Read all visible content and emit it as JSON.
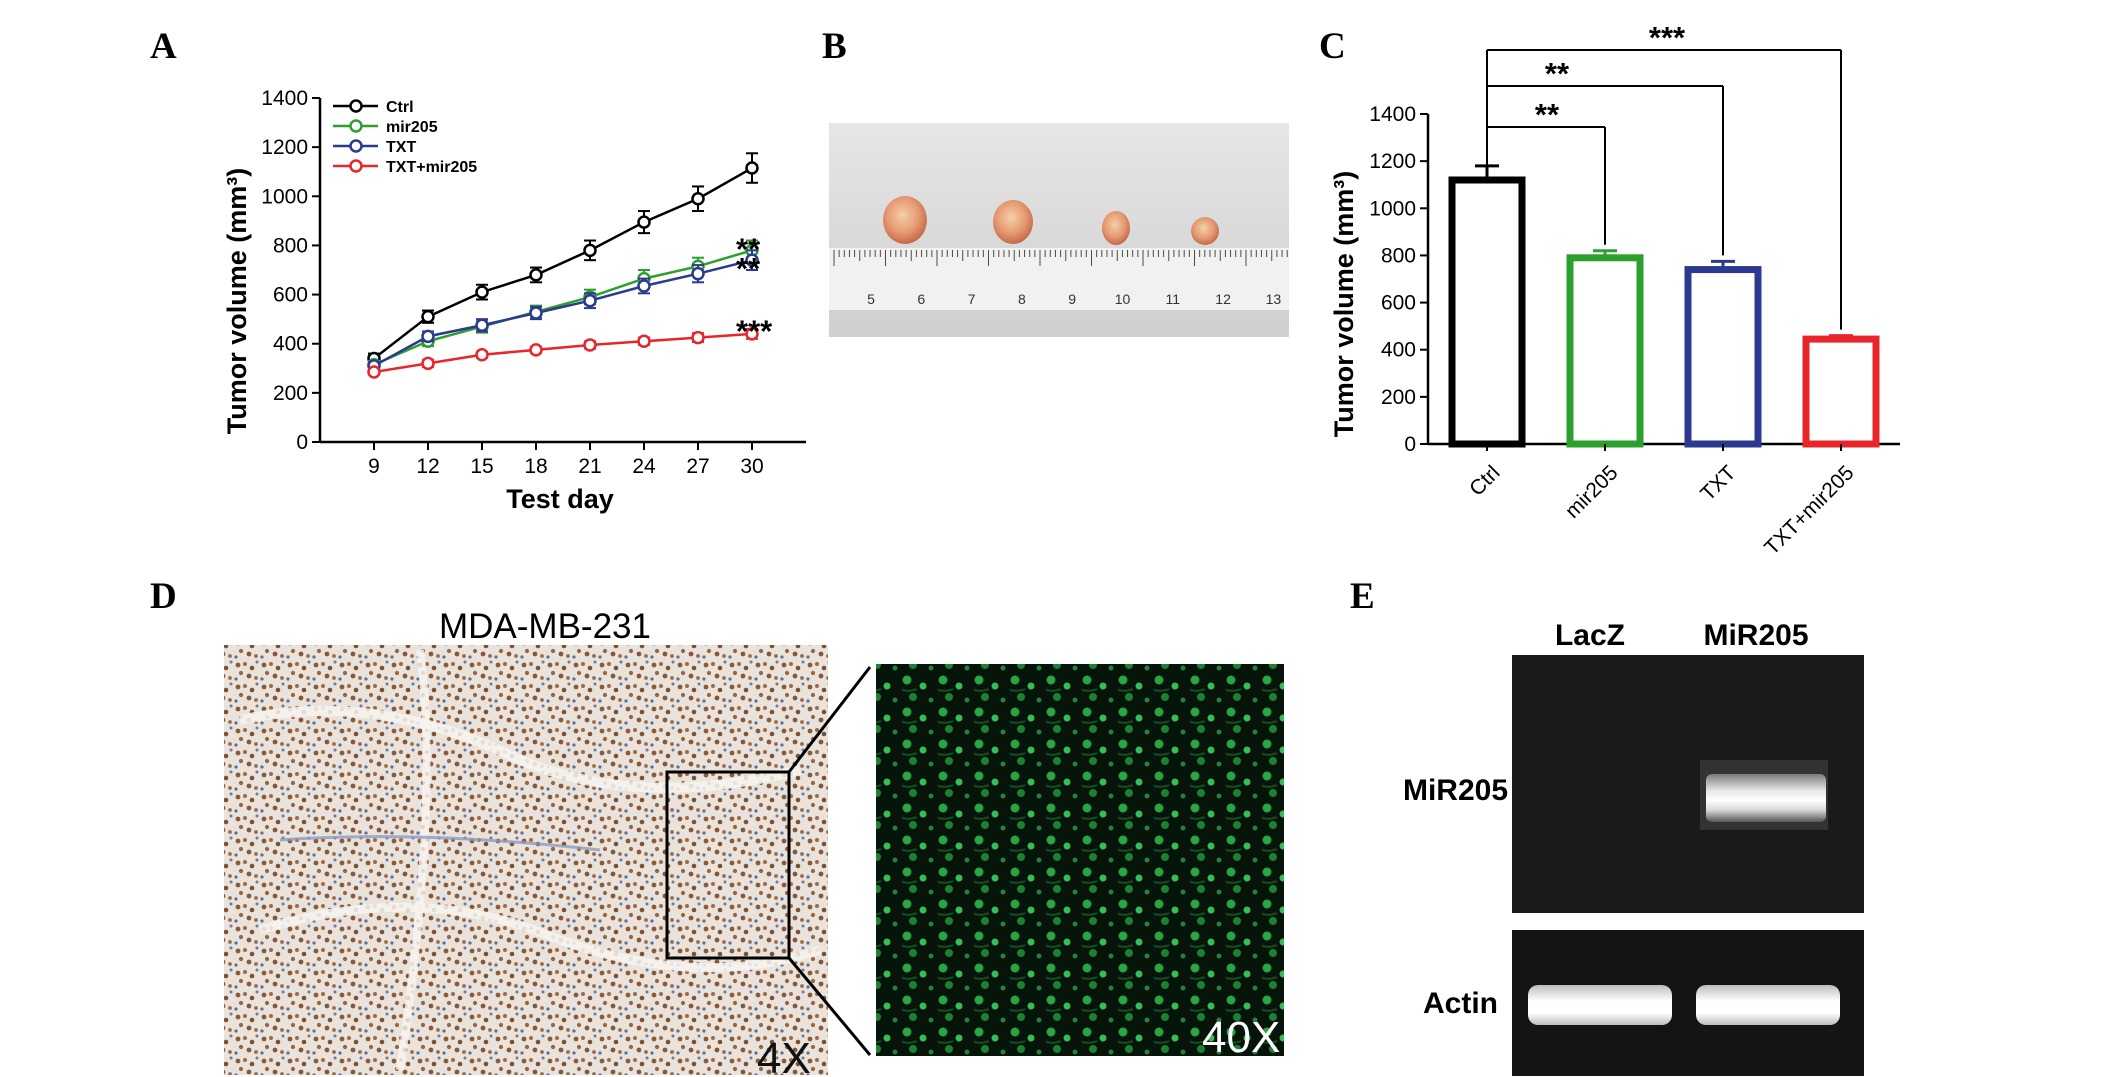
{
  "panels": {
    "a": {
      "letter": "A"
    },
    "b": {
      "letter": "B",
      "ruler_numbers": [
        "5",
        "6",
        "7",
        "8",
        "9",
        "10",
        "11",
        "12",
        "13"
      ]
    },
    "c": {
      "letter": "C"
    },
    "d": {
      "letter": "D",
      "title": "MDA-MB-231",
      "magnification_low": "4X",
      "magnification_high": "40X"
    },
    "e": {
      "letter": "E",
      "lane_labels": [
        "LacZ",
        "MiR205"
      ],
      "row_labels": [
        "MiR205",
        "Actin"
      ]
    }
  },
  "chart_data": [
    {
      "panel": "A",
      "type": "line",
      "xlabel": "Test day",
      "ylabel": "Tumor volume (mm³)",
      "x": [
        9,
        12,
        15,
        18,
        21,
        24,
        27,
        30
      ],
      "xlim": [
        6,
        33
      ],
      "ylim": [
        0,
        1400
      ],
      "yticks": [
        0,
        200,
        400,
        600,
        800,
        1000,
        1200,
        1400
      ],
      "legend_position": "top-left",
      "series": [
        {
          "name": "Ctrl",
          "color": "#000000",
          "values": [
            340,
            510,
            610,
            680,
            780,
            895,
            990,
            1115
          ],
          "errors": [
            20,
            25,
            30,
            30,
            40,
            45,
            50,
            60
          ]
        },
        {
          "name": "mir205",
          "color": "#2ca02c",
          "values": [
            315,
            410,
            470,
            530,
            590,
            665,
            715,
            780
          ],
          "errors": [
            15,
            20,
            25,
            25,
            30,
            35,
            35,
            40
          ]
        },
        {
          "name": "TXT",
          "color": "#2b3990",
          "values": [
            310,
            430,
            475,
            525,
            575,
            635,
            685,
            740
          ],
          "errors": [
            15,
            20,
            25,
            25,
            30,
            30,
            35,
            40
          ]
        },
        {
          "name": "TXT+mir205",
          "color": "#e8252a",
          "values": [
            285,
            320,
            355,
            375,
            395,
            410,
            425,
            440
          ],
          "errors": [
            10,
            15,
            12,
            12,
            15,
            15,
            18,
            20
          ]
        }
      ],
      "annotations": [
        "**",
        "**",
        "***"
      ]
    },
    {
      "panel": "C",
      "type": "bar",
      "ylabel": "Tumor volume (mm³)",
      "categories": [
        "Ctrl",
        "mir205",
        "TXT",
        "TXT+mir205"
      ],
      "values": [
        1120,
        790,
        740,
        445
      ],
      "errors": [
        60,
        30,
        35,
        15
      ],
      "colors": [
        "#000000",
        "#2ca02c",
        "#2b3990",
        "#e8252a"
      ],
      "ylim": [
        0,
        1400
      ],
      "yticks": [
        0,
        200,
        400,
        600,
        800,
        1000,
        1200,
        1400
      ],
      "grid": false,
      "significance": [
        "**",
        "**",
        "***"
      ]
    }
  ]
}
